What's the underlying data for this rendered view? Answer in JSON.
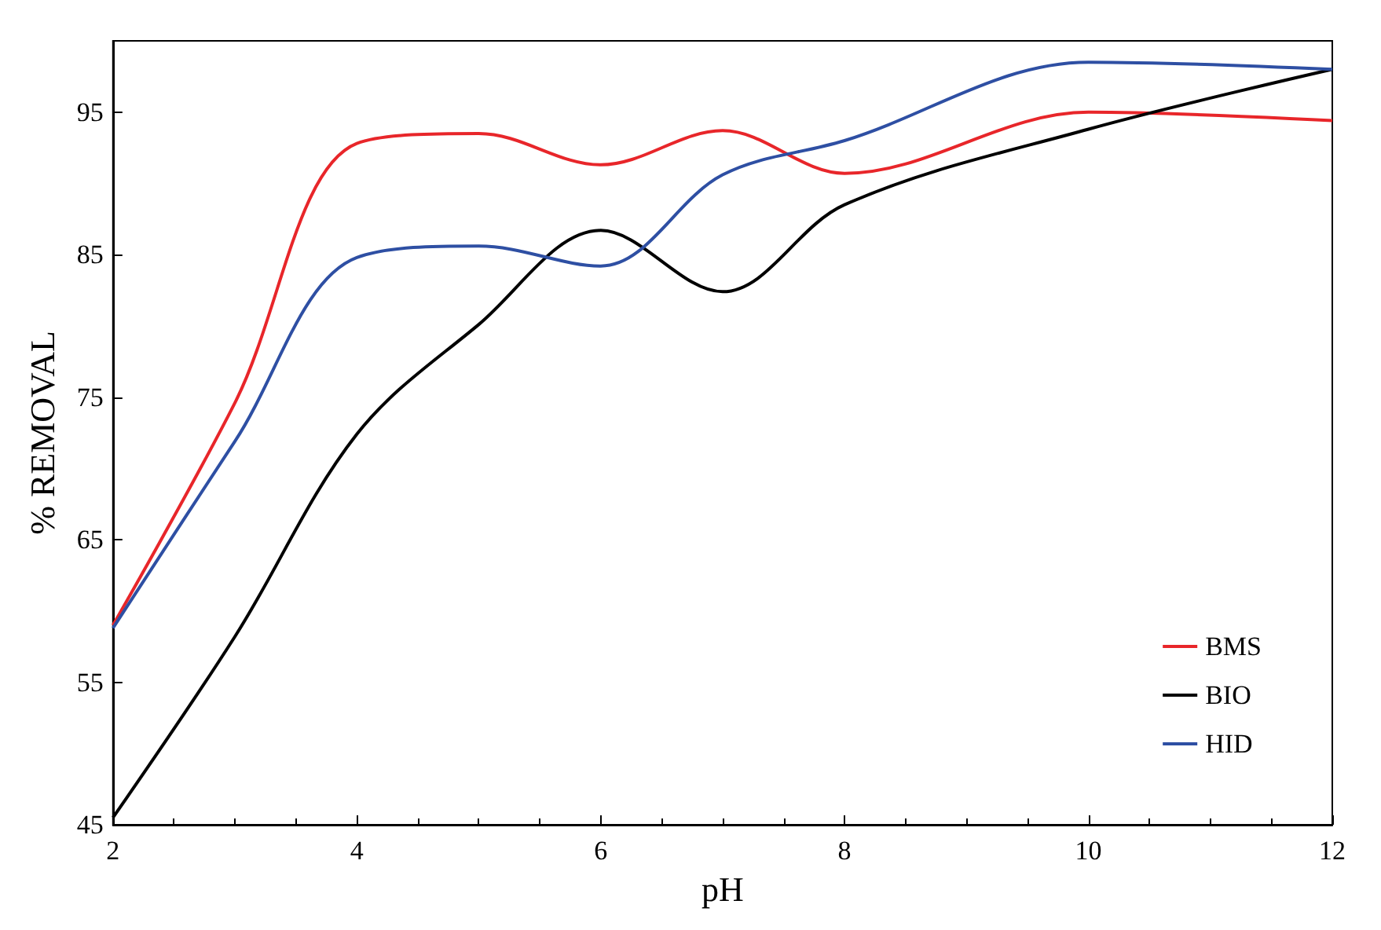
{
  "chart_data": {
    "type": "line",
    "xlabel": "pH",
    "ylabel": "% REMOVAL",
    "xlim": [
      2,
      12
    ],
    "xticks": [
      2,
      4,
      6,
      8,
      10,
      12
    ],
    "ylim": [
      45,
      100
    ],
    "yticks": [
      45,
      55,
      65,
      75,
      85,
      95
    ],
    "grid": false,
    "legend": "bottom right",
    "marker": "none",
    "line_style": "solid",
    "series": [
      {
        "name": "BMS",
        "color": "#e8262a",
        "x": [
          2,
          3,
          4,
          5,
          6,
          7,
          8,
          10,
          12
        ],
        "values": [
          59,
          74.6,
          92.8,
          93.5,
          91.3,
          93.7,
          90.7,
          95,
          94.4
        ]
      },
      {
        "name": "BIO",
        "color": "#000000",
        "x": [
          2,
          3,
          4,
          5,
          6,
          7,
          8,
          10,
          12
        ],
        "values": [
          45.5,
          58.2,
          72.4,
          80.1,
          86.7,
          82.4,
          88.5,
          93.8,
          98
        ]
      },
      {
        "name": "HID",
        "color": "#2e4fa3",
        "x": [
          2,
          3,
          4,
          5,
          6,
          7,
          8,
          10,
          12
        ],
        "values": [
          58.8,
          71.9,
          84.8,
          85.6,
          84.2,
          90.6,
          93,
          98.5,
          98
        ]
      }
    ]
  }
}
